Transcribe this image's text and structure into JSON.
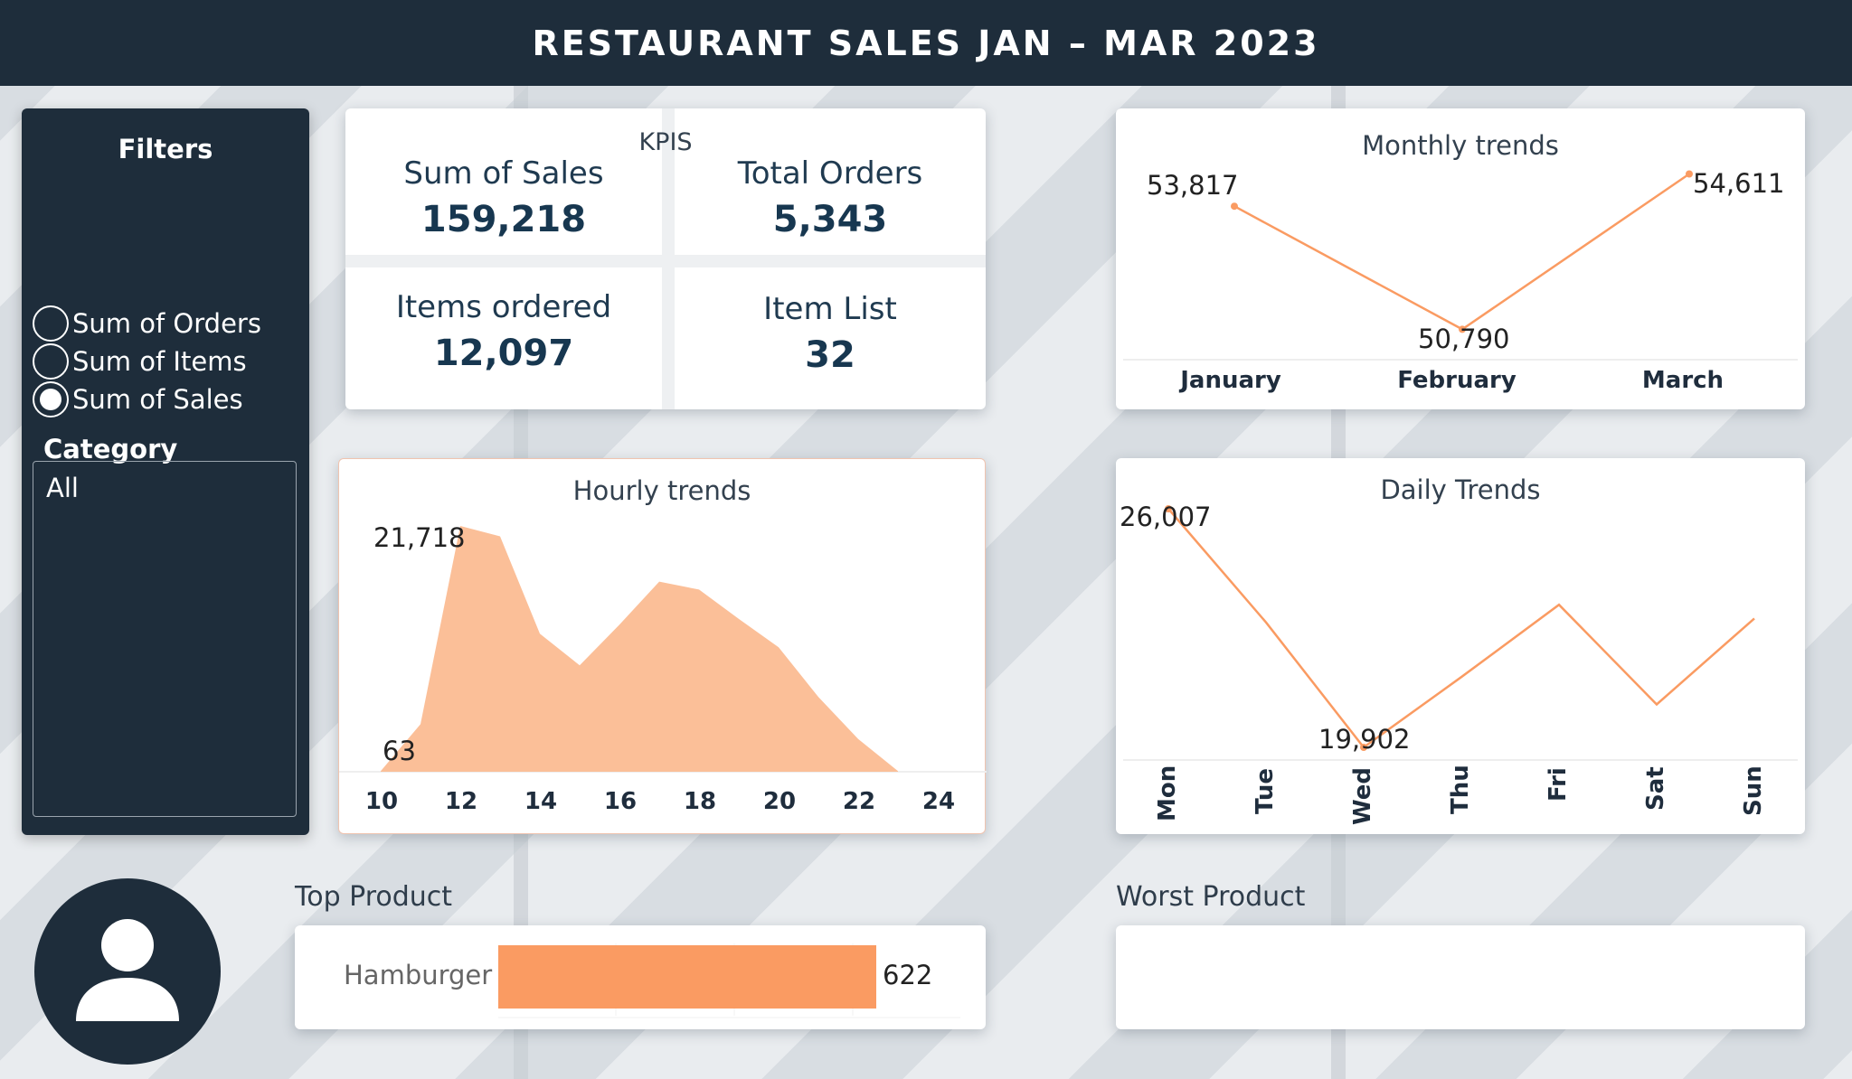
{
  "header": {
    "title": "RESTAURANT SALES JAN – MAR 2023"
  },
  "filters": {
    "title": "Filters",
    "options": [
      {
        "label": "Sum of Orders",
        "selected": false
      },
      {
        "label": "Sum of Items",
        "selected": false
      },
      {
        "label": "Sum of Sales",
        "selected": true
      }
    ],
    "category_label": "Category",
    "category_value": "All"
  },
  "kpis": {
    "title": "KPIS",
    "sales_label": "Sum of Sales",
    "sales_value": "159,218",
    "orders_label": "Total Orders",
    "orders_value": "5,343",
    "items_label": "Items ordered",
    "items_value": "12,097",
    "list_label": "Item List",
    "list_value": "32"
  },
  "monthly": {
    "title": "Monthly trends",
    "chart_data": {
      "type": "line",
      "categories": [
        "January",
        "February",
        "March"
      ],
      "values": [
        53817,
        50790,
        54611
      ],
      "data_labels": [
        "53,817",
        "50,790",
        "54,611"
      ]
    }
  },
  "hourly": {
    "title": "Hourly trends",
    "chart_data": {
      "type": "area",
      "x": [
        10,
        11,
        12,
        13,
        14,
        15,
        16,
        17,
        18,
        19,
        20,
        21,
        22,
        23
      ],
      "values": [
        63,
        4200,
        21718,
        20800,
        12200,
        9400,
        13000,
        16800,
        16100,
        13500,
        11000,
        6600,
        2900,
        63
      ],
      "xticks": [
        "10",
        "12",
        "14",
        "16",
        "18",
        "20",
        "22",
        "24"
      ],
      "data_labels": {
        "max": "21,718",
        "min": "63"
      }
    }
  },
  "daily": {
    "title": "Daily Trends",
    "chart_data": {
      "type": "line",
      "categories": [
        "Mon",
        "Tue",
        "Wed",
        "Thu",
        "Fri",
        "Sat",
        "Sun"
      ],
      "values": [
        26007,
        23100,
        19902,
        21700,
        23550,
        21000,
        23200
      ],
      "data_labels": {
        "max": "26,007",
        "min": "19,902"
      }
    }
  },
  "top_product": {
    "title": "Top Product",
    "chart_data": {
      "type": "bar",
      "categories": [
        "Hamburger"
      ],
      "values": [
        622
      ],
      "data_labels": [
        "622"
      ]
    }
  },
  "worst_product": {
    "title": "Worst Product"
  },
  "colors": {
    "header_bg": "#1e2d3b",
    "accent": "#fa9b62",
    "area_fill": "#fbbf98"
  },
  "icons": {
    "avatar": "user-icon"
  }
}
